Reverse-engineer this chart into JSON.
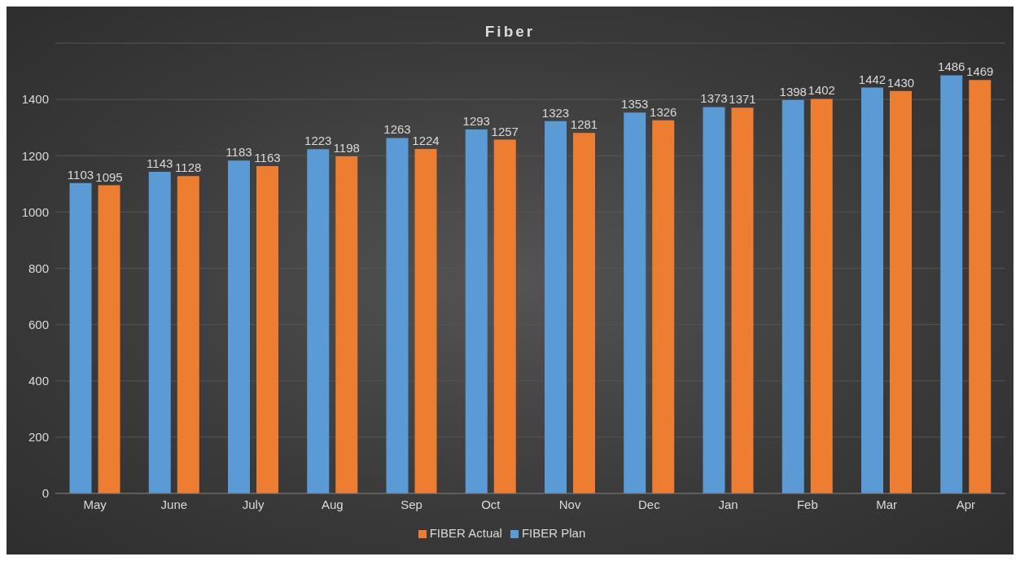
{
  "chart_data": {
    "type": "bar",
    "title": "Fiber",
    "categories": [
      "May",
      "June",
      "July",
      "Aug",
      "Sep",
      "Oct",
      "Nov",
      "Dec",
      "Jan",
      "Feb",
      "Mar",
      "Apr"
    ],
    "series": [
      {
        "name": "FIBER Plan",
        "color": "#5b9bd5",
        "values": [
          1103,
          1143,
          1183,
          1223,
          1263,
          1293,
          1323,
          1353,
          1373,
          1398,
          1442,
          1486
        ]
      },
      {
        "name": "FIBER Actual",
        "color": "#ed7d31",
        "values": [
          1095,
          1128,
          1163,
          1198,
          1224,
          1257,
          1281,
          1326,
          1371,
          1402,
          1430,
          1469
        ]
      }
    ],
    "ylim": [
      0,
      1600
    ],
    "yticks": [
      0,
      200,
      400,
      600,
      800,
      1000,
      1200,
      1400
    ],
    "grid": "y",
    "legend": "bottom",
    "data_labels": true
  }
}
